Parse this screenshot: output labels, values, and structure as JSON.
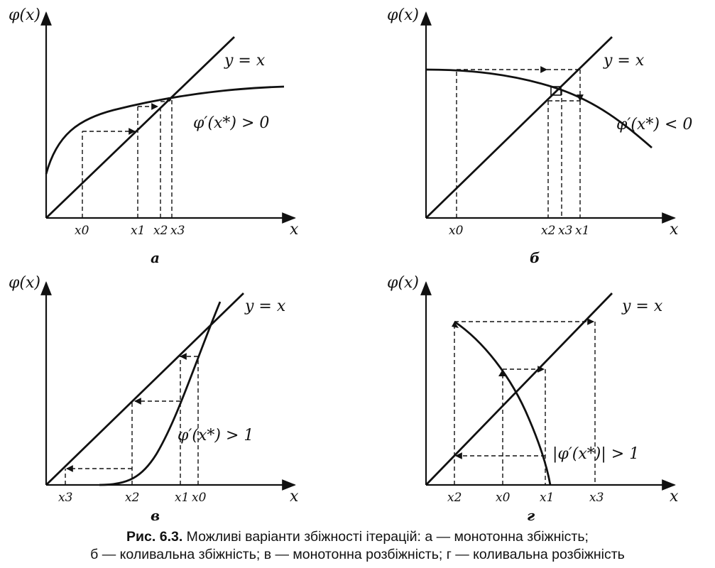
{
  "panels": [
    {
      "id": "a",
      "y_axis_label": "φ(x)",
      "x_axis_label": "x",
      "line_label": "y = x",
      "curve_label": "φ′(x*) > 0",
      "ticks": [
        "x0",
        "x1",
        "x2",
        "x3"
      ],
      "sublabel": "а"
    },
    {
      "id": "b",
      "y_axis_label": "φ(x)",
      "x_axis_label": "x",
      "line_label": "y = x",
      "curve_label": "φ′(x*) < 0",
      "ticks": [
        "x0",
        "x2",
        "x3",
        "x1"
      ],
      "sublabel": "б"
    },
    {
      "id": "c",
      "y_axis_label": "φ(x)",
      "x_axis_label": "x",
      "line_label": "y = x",
      "curve_label": "φ′(x*) > 1",
      "ticks": [
        "x3",
        "x2",
        "x1",
        "x0"
      ],
      "sublabel": "в"
    },
    {
      "id": "d",
      "y_axis_label": "φ(x)",
      "x_axis_label": "x",
      "line_label": "y = x",
      "curve_label": "|φ′(x*)| > 1",
      "ticks": [
        "x2",
        "x0",
        "x1",
        "x3"
      ],
      "sublabel": "г"
    }
  ],
  "caption": {
    "label": "Рис. 6.3.",
    "line1": "Можливі варіанти збіжності ітерацій: а — монотонна збіжність;",
    "line2": "б — коливальна збіжність; в — монотонна розбіжність; г — коливальна розбіжність"
  }
}
